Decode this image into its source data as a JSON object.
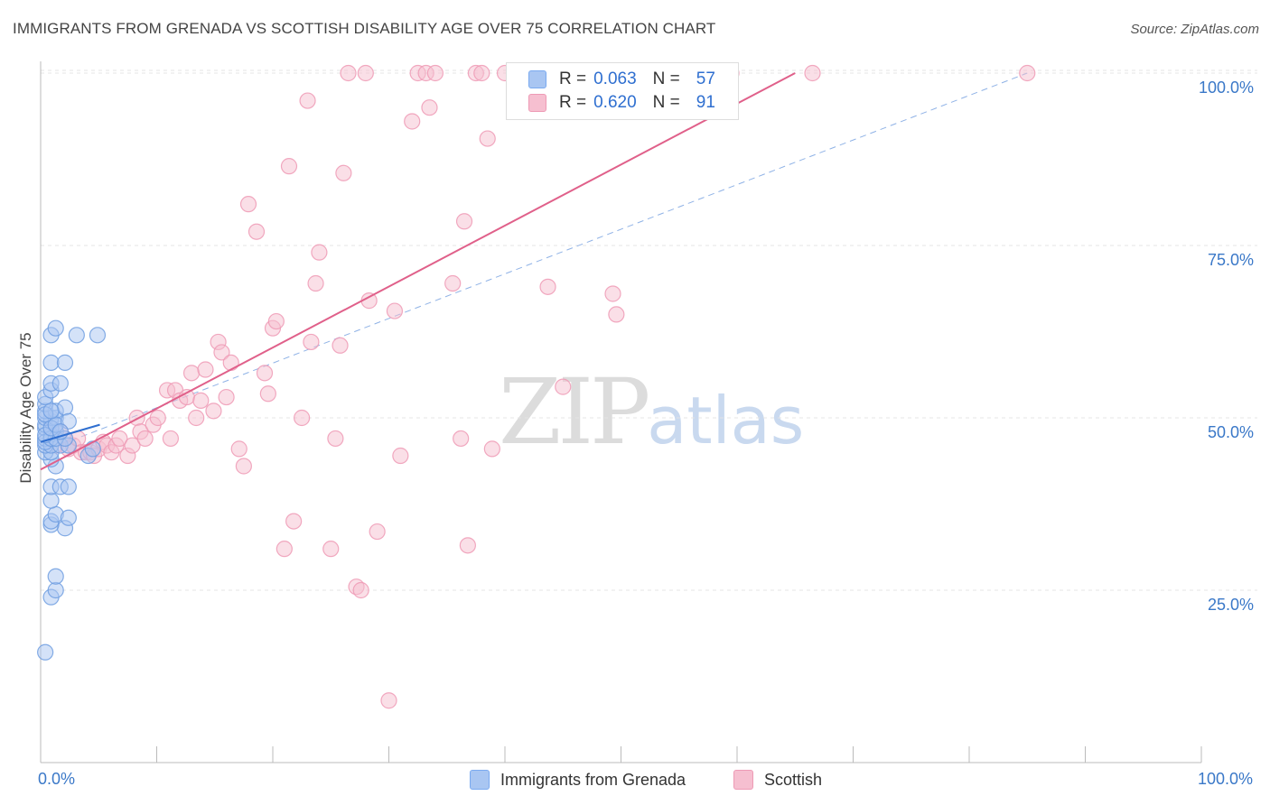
{
  "header": {
    "title": "IMMIGRANTS FROM GRENADA VS SCOTTISH DISABILITY AGE OVER 75 CORRELATION CHART",
    "source": "Source: ZipAtlas.com"
  },
  "watermark": {
    "zip": "ZIP",
    "atlas": "atlas"
  },
  "legend": {
    "rows": [
      {
        "r_label": "R =",
        "r_value": "0.063",
        "n_label": "N =",
        "n_value": "57",
        "color": "#7aaaf0"
      },
      {
        "r_label": "R =",
        "r_value": "0.620",
        "n_label": "N =",
        "n_value": "91",
        "color": "#f4a7bf"
      }
    ]
  },
  "axes": {
    "x_min_label": "0.0%",
    "x_max_label": "100.0%",
    "y_label": "Disability Age Over 75",
    "y_ticks": [
      "100.0%",
      "75.0%",
      "50.0%",
      "25.0%"
    ]
  },
  "colors": {
    "blue_fill": "#a9c6f2",
    "blue_stroke": "#6f9de0",
    "blue_line": "#2f6fd0",
    "pink_fill": "#f6bfd0",
    "pink_stroke": "#ee9ab5",
    "pink_line": "#e0608a",
    "grid": "#e4e4e4",
    "tick_text": "#3a78c8"
  },
  "chart_data": {
    "type": "scatter",
    "title": "IMMIGRANTS FROM GRENADA VS SCOTTISH DISABILITY AGE OVER 75 CORRELATION CHART",
    "xlabel": "",
    "ylabel": "Disability Age Over 75",
    "xlim": [
      0,
      100
    ],
    "ylim": [
      0,
      103
    ],
    "y_ticks": [
      25,
      50,
      75,
      100
    ],
    "grid": true,
    "legend_position": "bottom-center",
    "series": [
      {
        "name": "Immigrants from Grenada",
        "color": "#7aaaf0",
        "points": [
          [
            0.4,
            16
          ],
          [
            0.9,
            24
          ],
          [
            1.3,
            25
          ],
          [
            1.3,
            27
          ],
          [
            2.1,
            34
          ],
          [
            0.9,
            34.5
          ],
          [
            0.9,
            35
          ],
          [
            1.3,
            36
          ],
          [
            2.4,
            35.5
          ],
          [
            0.9,
            38
          ],
          [
            0.9,
            40
          ],
          [
            1.7,
            40
          ],
          [
            2.4,
            40
          ],
          [
            1.3,
            43
          ],
          [
            0.9,
            44
          ],
          [
            0.4,
            45
          ],
          [
            0.9,
            45
          ],
          [
            0.4,
            46
          ],
          [
            0.4,
            47
          ],
          [
            0.9,
            47.5
          ],
          [
            1.3,
            48
          ],
          [
            0.4,
            48.5
          ],
          [
            0.4,
            49
          ],
          [
            0.9,
            49.5
          ],
          [
            0.9,
            50
          ],
          [
            0.4,
            50
          ],
          [
            1.3,
            50
          ],
          [
            0.4,
            51
          ],
          [
            1.3,
            51
          ],
          [
            2.1,
            51.5
          ],
          [
            0.4,
            52
          ],
          [
            0.4,
            53
          ],
          [
            0.9,
            54
          ],
          [
            0.9,
            55
          ],
          [
            1.7,
            55
          ],
          [
            0.9,
            58
          ],
          [
            2.1,
            58
          ],
          [
            0.9,
            62
          ],
          [
            1.3,
            63
          ],
          [
            3.1,
            62
          ],
          [
            4.9,
            62
          ],
          [
            4.1,
            44.5
          ],
          [
            4.5,
            45.5
          ],
          [
            0.9,
            46
          ],
          [
            1.7,
            46
          ],
          [
            2.4,
            46
          ],
          [
            0.4,
            46.5
          ],
          [
            0.9,
            47
          ],
          [
            1.3,
            47
          ],
          [
            2.1,
            47
          ],
          [
            0.4,
            47.5
          ],
          [
            0.9,
            48.5
          ],
          [
            1.3,
            49
          ],
          [
            2.4,
            49.5
          ],
          [
            0.4,
            50.5
          ],
          [
            1.7,
            48
          ],
          [
            0.9,
            51
          ]
        ],
        "trend": {
          "x": [
            0,
            5.1
          ],
          "y": [
            46.5,
            49
          ]
        }
      },
      {
        "name": "Scottish",
        "color": "#f4a7bf",
        "points": [
          [
            1.3,
            46
          ],
          [
            1.7,
            48
          ],
          [
            2.1,
            47
          ],
          [
            2.4,
            45.5
          ],
          [
            2.8,
            46
          ],
          [
            3.2,
            47
          ],
          [
            3.5,
            45
          ],
          [
            3.9,
            45
          ],
          [
            4.3,
            45
          ],
          [
            4.6,
            44.5
          ],
          [
            5.0,
            45.5
          ],
          [
            5.4,
            46.5
          ],
          [
            5.7,
            46
          ],
          [
            6.1,
            45
          ],
          [
            6.5,
            46
          ],
          [
            6.8,
            47
          ],
          [
            7.5,
            44.5
          ],
          [
            7.9,
            46
          ],
          [
            8.3,
            50
          ],
          [
            8.6,
            48
          ],
          [
            9.0,
            47
          ],
          [
            9.7,
            49
          ],
          [
            10.1,
            50
          ],
          [
            10.9,
            54
          ],
          [
            11.2,
            47
          ],
          [
            11.6,
            54
          ],
          [
            12.0,
            52.5
          ],
          [
            12.6,
            53
          ],
          [
            13.0,
            56.5
          ],
          [
            13.4,
            50
          ],
          [
            13.8,
            52.5
          ],
          [
            14.2,
            57
          ],
          [
            14.9,
            51
          ],
          [
            15.3,
            61
          ],
          [
            15.6,
            59.5
          ],
          [
            16.0,
            53
          ],
          [
            16.4,
            58
          ],
          [
            17.1,
            45.5
          ],
          [
            17.5,
            43
          ],
          [
            17.9,
            81
          ],
          [
            18.6,
            77
          ],
          [
            19.3,
            56.5
          ],
          [
            19.6,
            53.5
          ],
          [
            20.0,
            63
          ],
          [
            20.3,
            64
          ],
          [
            21.0,
            31
          ],
          [
            21.4,
            86.5
          ],
          [
            21.8,
            35
          ],
          [
            22.5,
            50
          ],
          [
            23.0,
            96
          ],
          [
            23.3,
            61
          ],
          [
            23.7,
            69.5
          ],
          [
            24.0,
            74
          ],
          [
            25.0,
            31
          ],
          [
            25.4,
            47
          ],
          [
            25.8,
            60.5
          ],
          [
            26.1,
            85.5
          ],
          [
            26.5,
            100
          ],
          [
            27.2,
            25.5
          ],
          [
            27.6,
            25
          ],
          [
            28.0,
            100
          ],
          [
            28.3,
            67
          ],
          [
            29.0,
            33.5
          ],
          [
            30.0,
            9
          ],
          [
            30.5,
            65.5
          ],
          [
            31.0,
            44.5
          ],
          [
            32.0,
            93
          ],
          [
            32.5,
            100
          ],
          [
            33.2,
            100
          ],
          [
            33.5,
            95
          ],
          [
            34.0,
            100
          ],
          [
            35.5,
            69.5
          ],
          [
            36.2,
            47
          ],
          [
            36.5,
            78.5
          ],
          [
            36.8,
            31.5
          ],
          [
            37.5,
            100
          ],
          [
            38.0,
            100
          ],
          [
            38.5,
            90.5
          ],
          [
            38.9,
            45.5
          ],
          [
            40.0,
            100
          ],
          [
            41.0,
            100
          ],
          [
            41.4,
            100
          ],
          [
            43.7,
            69
          ],
          [
            45.0,
            54.5
          ],
          [
            47.0,
            100
          ],
          [
            49.3,
            68
          ],
          [
            49.6,
            65
          ],
          [
            51.0,
            100
          ],
          [
            59.5,
            100
          ],
          [
            66.5,
            100
          ],
          [
            85.0,
            100
          ]
        ],
        "trend": {
          "x": [
            0,
            65
          ],
          "y": [
            42.5,
            100
          ]
        }
      }
    ],
    "reference_line": {
      "style": "dashed",
      "x": [
        0,
        85
      ],
      "y": [
        45,
        100
      ]
    }
  },
  "bottom_legend": {
    "items": [
      {
        "label": "Immigrants from Grenada",
        "color": "#a9c6f2"
      },
      {
        "label": "Scottish",
        "color": "#f6bfd0"
      }
    ]
  }
}
